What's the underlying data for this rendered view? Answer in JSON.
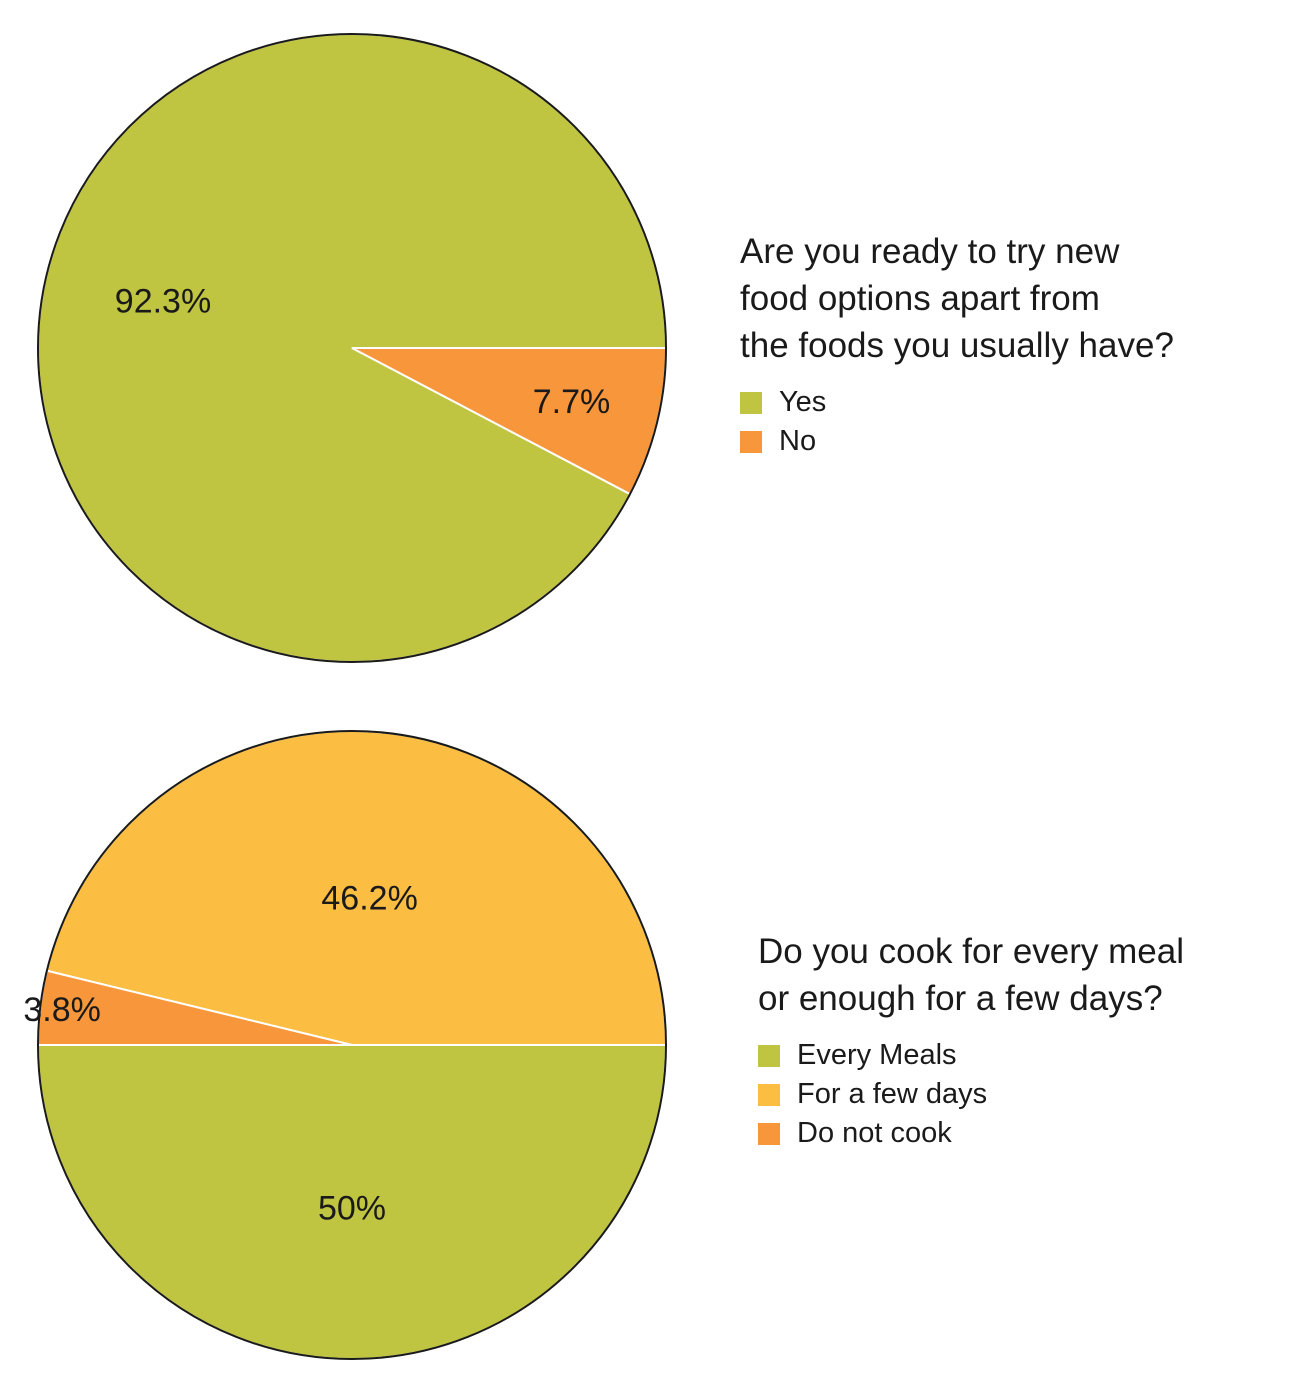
{
  "chart_data": [
    {
      "type": "pie",
      "title_lines": [
        "Are you ready to try new",
        "food options apart from",
        "the foods you usually have?"
      ],
      "slices": [
        {
          "label": "Yes",
          "value": 92.3,
          "display": "92.3%",
          "color": "#c0c541"
        },
        {
          "label": "No",
          "value": 7.7,
          "display": "7.7%",
          "color": "#f7963a"
        }
      ],
      "legend_placement": "right"
    },
    {
      "type": "pie",
      "title_lines": [
        "Do you cook for every meal",
        "or enough for a few days?"
      ],
      "slices": [
        {
          "label": "Every Meals",
          "value": 50,
          "display": "50%",
          "color": "#c0c541"
        },
        {
          "label": "For a few days",
          "value": 46.2,
          "display": "46.2%",
          "color": "#fbbe42"
        },
        {
          "label": "Do not cook",
          "value": 3.8,
          "display": "3.8%",
          "color": "#f7963a"
        }
      ],
      "legend_placement": "right"
    }
  ]
}
